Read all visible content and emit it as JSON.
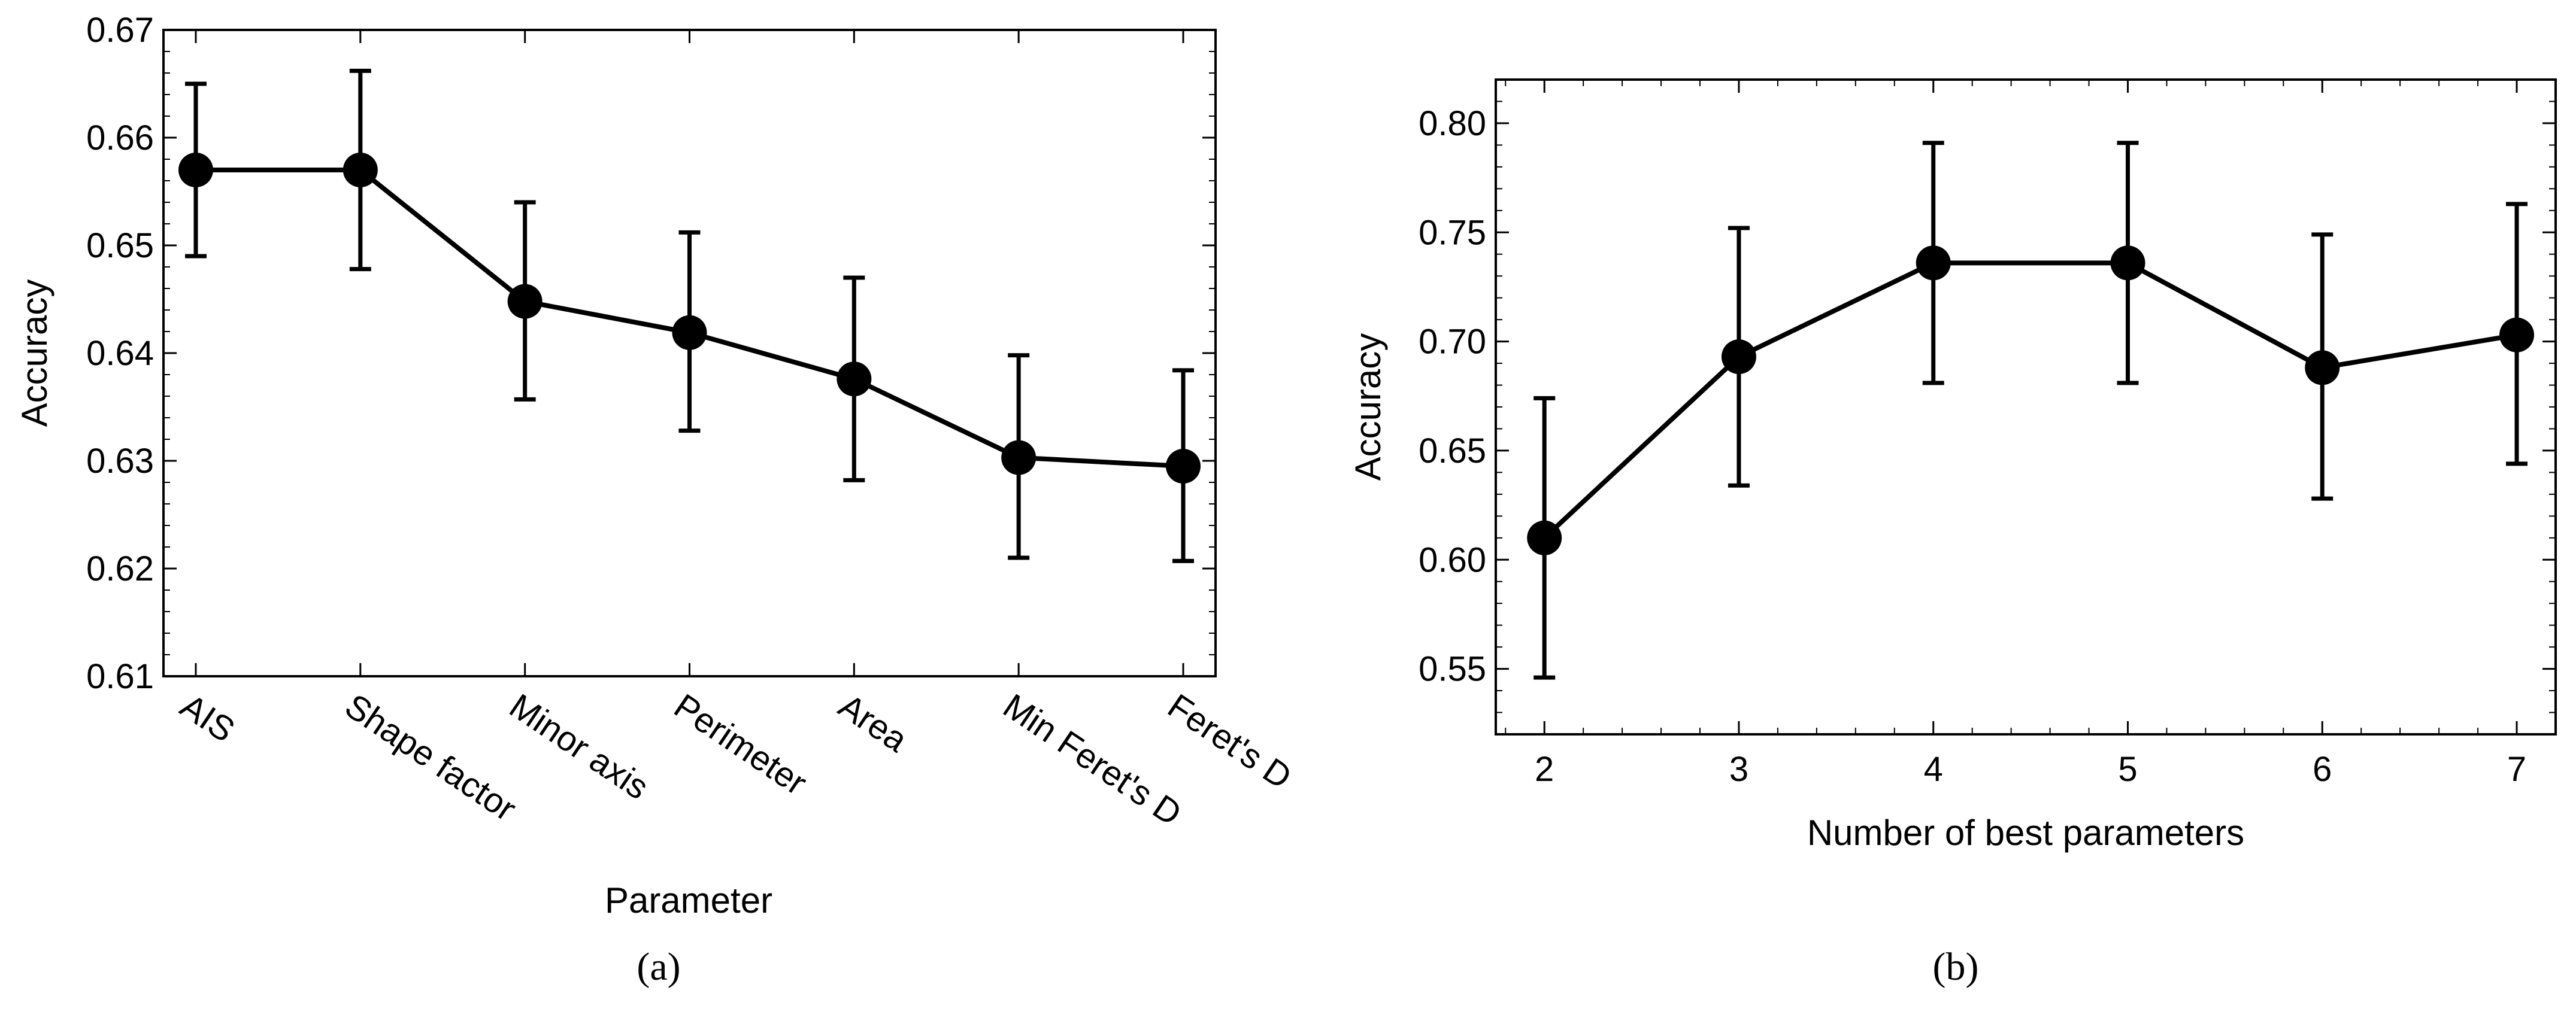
{
  "chart_data": [
    {
      "type": "line",
      "panel": "(a)",
      "panel_label": "(a)",
      "title": "",
      "xlabel": "Parameter",
      "ylabel": "Accuracy",
      "categories": [
        "AIS",
        "Shape factor",
        "Minor axis",
        "Perimeter",
        "Area",
        "Min Feret's D",
        "Feret's D"
      ],
      "values": [
        0.657,
        0.657,
        0.6448,
        0.6419,
        0.6376,
        0.6303,
        0.6295
      ],
      "err_upper": [
        0.665,
        0.6662,
        0.654,
        0.6512,
        0.647,
        0.6398,
        0.6384
      ],
      "err_lower": [
        0.649,
        0.6478,
        0.6357,
        0.6328,
        0.6282,
        0.621,
        0.6207
      ],
      "ylim": [
        0.61,
        0.67
      ],
      "yticks": [
        0.61,
        0.62,
        0.63,
        0.64,
        0.65,
        0.66,
        0.67
      ],
      "ytick_labels": [
        "0.61",
        "0.62",
        "0.63",
        "0.64",
        "0.65",
        "0.66",
        "0.67"
      ],
      "grid": false
    },
    {
      "type": "line",
      "panel": "(b)",
      "panel_label": "(b)",
      "title": "",
      "xlabel": "Number of best parameters",
      "ylabel": "Accuracy",
      "x": [
        2,
        3,
        4,
        5,
        6,
        7
      ],
      "xtick_labels": [
        "2",
        "3",
        "4",
        "5",
        "6",
        "7"
      ],
      "values": [
        0.61,
        0.693,
        0.736,
        0.736,
        0.688,
        0.703
      ],
      "err_upper": [
        0.674,
        0.752,
        0.791,
        0.791,
        0.749,
        0.763
      ],
      "err_lower": [
        0.546,
        0.634,
        0.681,
        0.681,
        0.628,
        0.644
      ],
      "xlim": [
        1.75,
        7.2
      ],
      "ylim": [
        0.52,
        0.82
      ],
      "yticks": [
        0.55,
        0.6,
        0.65,
        0.7,
        0.75,
        0.8
      ],
      "ytick_labels": [
        "0.55",
        "0.60",
        "0.65",
        "0.70",
        "0.75",
        "0.80"
      ],
      "grid": false
    }
  ]
}
